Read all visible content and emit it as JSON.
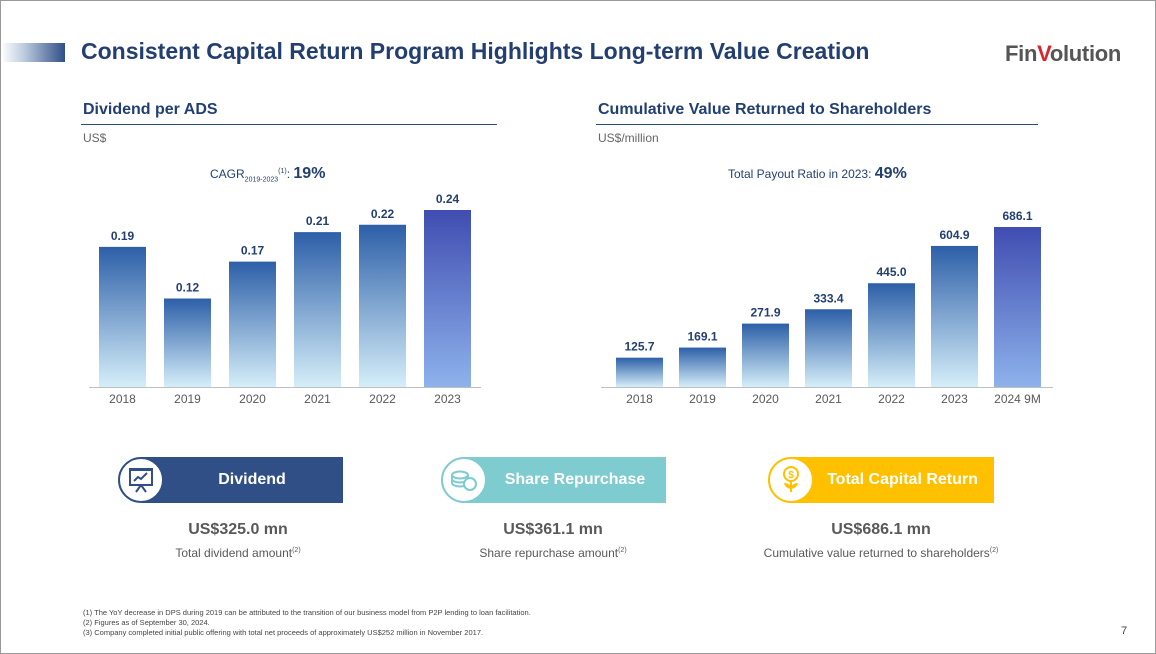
{
  "header": {
    "title": "Consistent Capital Return Program Highlights Long-term Value Creation",
    "logo_a": "Fin",
    "logo_v": "V",
    "logo_b": "olution"
  },
  "left_section": {
    "title": "Dividend per ADS",
    "unit": "US$",
    "note_prefix": "CAGR",
    "note_sub": "2019-2023",
    "note_sup": "(1)",
    "note_sep": ": ",
    "note_value": "19%"
  },
  "right_section": {
    "title": "Cumulative Value Returned to Shareholders",
    "unit": "US$/million",
    "note_prefix": "Total Payout Ratio in 2023: ",
    "note_value": "49%"
  },
  "chart_data": [
    {
      "type": "bar",
      "title": "Dividend per ADS",
      "ylabel": "US$",
      "categories": [
        "2018",
        "2019",
        "2020",
        "2021",
        "2022",
        "2023"
      ],
      "values": [
        0.19,
        0.12,
        0.17,
        0.21,
        0.22,
        0.24
      ],
      "labels": [
        "0.19",
        "0.12",
        "0.17",
        "0.21",
        "0.22",
        "0.24"
      ],
      "ylim": [
        0,
        0.24
      ],
      "grid": false
    },
    {
      "type": "bar",
      "title": "Cumulative Value Returned to Shareholders",
      "ylabel": "US$/million",
      "categories": [
        "2018",
        "2019",
        "2020",
        "2021",
        "2022",
        "2023",
        "2024 9M"
      ],
      "values": [
        125.7,
        169.1,
        271.9,
        333.4,
        445.0,
        604.9,
        686.1
      ],
      "labels": [
        "125.7",
        "169.1",
        "271.9",
        "333.4",
        "445.0",
        "604.9",
        "686.1"
      ],
      "ylim": [
        0,
        686.1
      ],
      "grid": false
    }
  ],
  "cards": [
    {
      "label": "Dividend",
      "icon": "presentation-board-icon",
      "amount": "US$325.0 mn",
      "desc": "Total dividend amount",
      "desc_sup": "(2)",
      "color": "#2f4f86"
    },
    {
      "label": "Share Repurchase",
      "icon": "coins-icon",
      "amount": "US$361.1 mn",
      "desc": "Share repurchase amount",
      "desc_sup": "(2)",
      "color": "#7ecbd0"
    },
    {
      "label": "Total Capital Return",
      "icon": "dollar-plant-icon",
      "amount": "US$686.1 mn",
      "desc": "Cumulative value returned to shareholders",
      "desc_sup": "(2)",
      "color": "#ffc000"
    }
  ],
  "footnotes": [
    "(1) The YoY decrease in DPS during 2019 can be attributed to the transition of our business model from P2P lending to loan facilitation.",
    "(2) Figures as of September 30, 2024.",
    "(3) Company completed initial public offering with total net proceeds of approximately US$252 million in November 2017."
  ],
  "page_number": "7",
  "colors": {
    "bar_top": "#2d5fa8",
    "bar_bottom": "#d5eef9",
    "bar_highlight_top": "#3f4db0",
    "bar_highlight_bottom": "#8eb2ec",
    "title": "#233f72"
  }
}
